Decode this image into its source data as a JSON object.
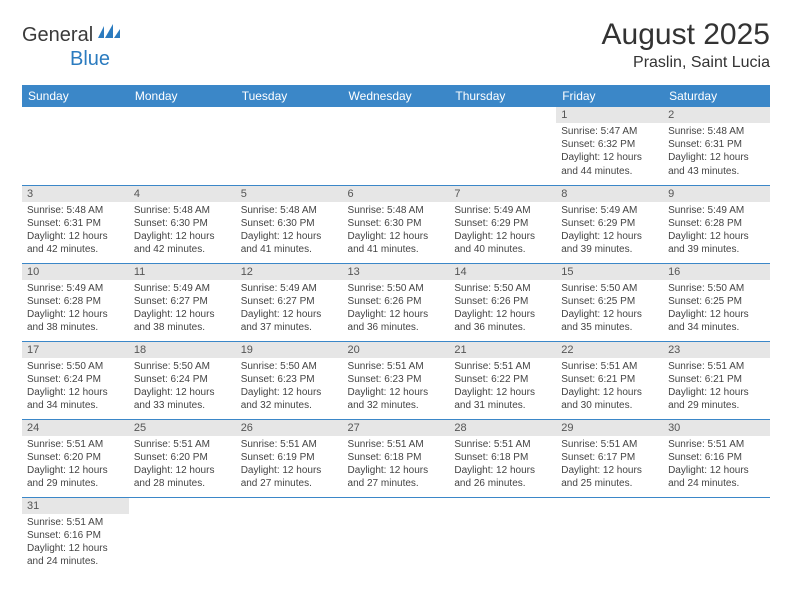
{
  "logo": {
    "text1": "General",
    "text2": "Blue"
  },
  "title": "August 2025",
  "location": "Praslin, Saint Lucia",
  "colors": {
    "header_bg": "#3b87c8",
    "header_fg": "#ffffff",
    "daynum_bg": "#e6e6e6",
    "row_border": "#3b87c8",
    "logo_blue": "#2b7bbf"
  },
  "weekdays": [
    "Sunday",
    "Monday",
    "Tuesday",
    "Wednesday",
    "Thursday",
    "Friday",
    "Saturday"
  ],
  "weeks": [
    [
      null,
      null,
      null,
      null,
      null,
      {
        "n": "1",
        "sr": "5:47 AM",
        "ss": "6:32 PM",
        "dl": "12 hours and 44 minutes."
      },
      {
        "n": "2",
        "sr": "5:48 AM",
        "ss": "6:31 PM",
        "dl": "12 hours and 43 minutes."
      }
    ],
    [
      {
        "n": "3",
        "sr": "5:48 AM",
        "ss": "6:31 PM",
        "dl": "12 hours and 42 minutes."
      },
      {
        "n": "4",
        "sr": "5:48 AM",
        "ss": "6:30 PM",
        "dl": "12 hours and 42 minutes."
      },
      {
        "n": "5",
        "sr": "5:48 AM",
        "ss": "6:30 PM",
        "dl": "12 hours and 41 minutes."
      },
      {
        "n": "6",
        "sr": "5:48 AM",
        "ss": "6:30 PM",
        "dl": "12 hours and 41 minutes."
      },
      {
        "n": "7",
        "sr": "5:49 AM",
        "ss": "6:29 PM",
        "dl": "12 hours and 40 minutes."
      },
      {
        "n": "8",
        "sr": "5:49 AM",
        "ss": "6:29 PM",
        "dl": "12 hours and 39 minutes."
      },
      {
        "n": "9",
        "sr": "5:49 AM",
        "ss": "6:28 PM",
        "dl": "12 hours and 39 minutes."
      }
    ],
    [
      {
        "n": "10",
        "sr": "5:49 AM",
        "ss": "6:28 PM",
        "dl": "12 hours and 38 minutes."
      },
      {
        "n": "11",
        "sr": "5:49 AM",
        "ss": "6:27 PM",
        "dl": "12 hours and 38 minutes."
      },
      {
        "n": "12",
        "sr": "5:49 AM",
        "ss": "6:27 PM",
        "dl": "12 hours and 37 minutes."
      },
      {
        "n": "13",
        "sr": "5:50 AM",
        "ss": "6:26 PM",
        "dl": "12 hours and 36 minutes."
      },
      {
        "n": "14",
        "sr": "5:50 AM",
        "ss": "6:26 PM",
        "dl": "12 hours and 36 minutes."
      },
      {
        "n": "15",
        "sr": "5:50 AM",
        "ss": "6:25 PM",
        "dl": "12 hours and 35 minutes."
      },
      {
        "n": "16",
        "sr": "5:50 AM",
        "ss": "6:25 PM",
        "dl": "12 hours and 34 minutes."
      }
    ],
    [
      {
        "n": "17",
        "sr": "5:50 AM",
        "ss": "6:24 PM",
        "dl": "12 hours and 34 minutes."
      },
      {
        "n": "18",
        "sr": "5:50 AM",
        "ss": "6:24 PM",
        "dl": "12 hours and 33 minutes."
      },
      {
        "n": "19",
        "sr": "5:50 AM",
        "ss": "6:23 PM",
        "dl": "12 hours and 32 minutes."
      },
      {
        "n": "20",
        "sr": "5:51 AM",
        "ss": "6:23 PM",
        "dl": "12 hours and 32 minutes."
      },
      {
        "n": "21",
        "sr": "5:51 AM",
        "ss": "6:22 PM",
        "dl": "12 hours and 31 minutes."
      },
      {
        "n": "22",
        "sr": "5:51 AM",
        "ss": "6:21 PM",
        "dl": "12 hours and 30 minutes."
      },
      {
        "n": "23",
        "sr": "5:51 AM",
        "ss": "6:21 PM",
        "dl": "12 hours and 29 minutes."
      }
    ],
    [
      {
        "n": "24",
        "sr": "5:51 AM",
        "ss": "6:20 PM",
        "dl": "12 hours and 29 minutes."
      },
      {
        "n": "25",
        "sr": "5:51 AM",
        "ss": "6:20 PM",
        "dl": "12 hours and 28 minutes."
      },
      {
        "n": "26",
        "sr": "5:51 AM",
        "ss": "6:19 PM",
        "dl": "12 hours and 27 minutes."
      },
      {
        "n": "27",
        "sr": "5:51 AM",
        "ss": "6:18 PM",
        "dl": "12 hours and 27 minutes."
      },
      {
        "n": "28",
        "sr": "5:51 AM",
        "ss": "6:18 PM",
        "dl": "12 hours and 26 minutes."
      },
      {
        "n": "29",
        "sr": "5:51 AM",
        "ss": "6:17 PM",
        "dl": "12 hours and 25 minutes."
      },
      {
        "n": "30",
        "sr": "5:51 AM",
        "ss": "6:16 PM",
        "dl": "12 hours and 24 minutes."
      }
    ],
    [
      {
        "n": "31",
        "sr": "5:51 AM",
        "ss": "6:16 PM",
        "dl": "12 hours and 24 minutes."
      },
      null,
      null,
      null,
      null,
      null,
      null
    ]
  ],
  "labels": {
    "sunrise": "Sunrise:",
    "sunset": "Sunset:",
    "daylight": "Daylight:"
  }
}
